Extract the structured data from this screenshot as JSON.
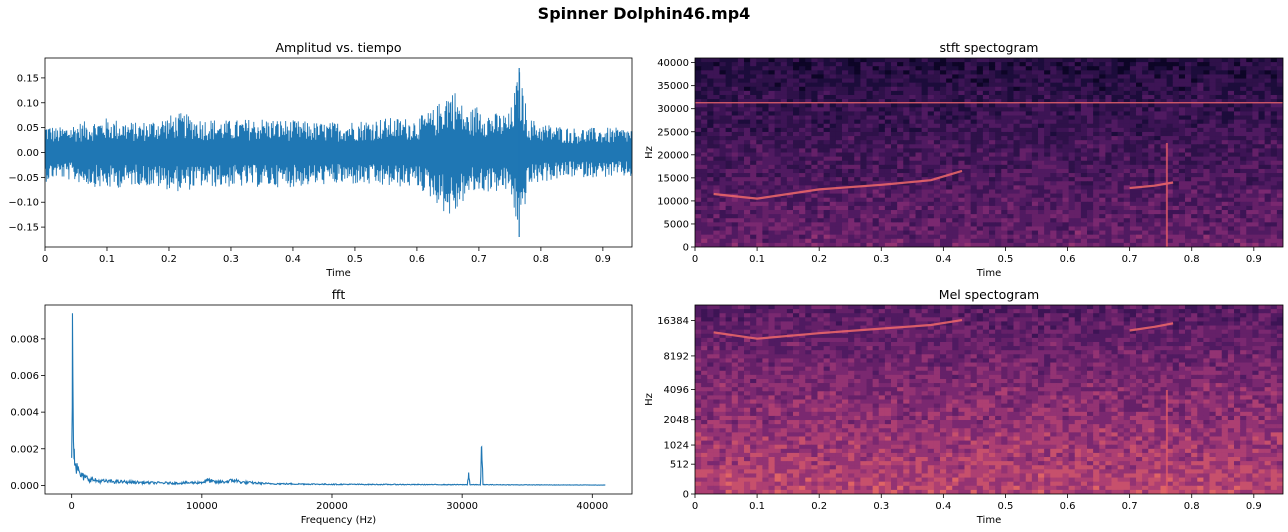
{
  "figure": {
    "suptitle": "Spinner Dolphin46.mp4"
  },
  "colors": {
    "line": "#1f77b4",
    "spec_low": "#1a0a3a",
    "spec_mid": "#6a2d7a",
    "spec_high": "#f0606a"
  },
  "chart_data": [
    {
      "type": "line",
      "title": "Amplitud vs. tiempo",
      "xlabel": "Time",
      "ylabel": "",
      "xlim": [
        0,
        0.947
      ],
      "ylim": [
        -0.19,
        0.19
      ],
      "xticks": [
        "0",
        "0.1",
        "0.2",
        "0.3",
        "0.4",
        "0.5",
        "0.6",
        "0.7",
        "0.8",
        "0.9"
      ],
      "xtick_values": [
        0,
        0.1,
        0.2,
        0.3,
        0.4,
        0.5,
        0.6,
        0.7,
        0.8,
        0.9
      ],
      "yticks": [
        "−0.15",
        "−0.10",
        "−0.05",
        "0.00",
        "0.05",
        "0.10",
        "0.15"
      ],
      "ytick_values": [
        -0.15,
        -0.1,
        -0.05,
        0,
        0.05,
        0.1,
        0.15
      ],
      "series": [
        {
          "values_description": "audio waveform envelope (time, max amplitude)",
          "x": [
            0,
            0.02,
            0.05,
            0.1,
            0.15,
            0.2,
            0.22,
            0.25,
            0.3,
            0.35,
            0.4,
            0.45,
            0.5,
            0.55,
            0.6,
            0.63,
            0.65,
            0.66,
            0.68,
            0.7,
            0.72,
            0.75,
            0.765,
            0.78,
            0.8,
            0.85,
            0.9,
            0.947
          ],
          "y_max": [
            0.06,
            0.05,
            0.06,
            0.07,
            0.06,
            0.075,
            0.08,
            0.07,
            0.065,
            0.07,
            0.065,
            0.06,
            0.065,
            0.07,
            0.07,
            0.09,
            0.13,
            0.13,
            0.08,
            0.1,
            0.08,
            0.08,
            0.17,
            0.07,
            0.06,
            0.05,
            0.05,
            0.05
          ],
          "y_min": [
            -0.06,
            -0.05,
            -0.06,
            -0.075,
            -0.065,
            -0.075,
            -0.08,
            -0.07,
            -0.07,
            -0.07,
            -0.07,
            -0.065,
            -0.065,
            -0.07,
            -0.07,
            -0.1,
            -0.13,
            -0.13,
            -0.09,
            -0.08,
            -0.08,
            -0.08,
            -0.17,
            -0.07,
            -0.06,
            -0.05,
            -0.05,
            -0.05
          ]
        }
      ]
    },
    {
      "type": "heatmap",
      "title": "stft spectogram",
      "xlabel": "Time",
      "ylabel": "Hz",
      "xlim": [
        0,
        0.947
      ],
      "ylim": [
        0,
        41000
      ],
      "xticks": [
        "0",
        "0.1",
        "0.2",
        "0.3",
        "0.4",
        "0.5",
        "0.6",
        "0.7",
        "0.8",
        "0.9"
      ],
      "xtick_values": [
        0,
        0.1,
        0.2,
        0.3,
        0.4,
        0.5,
        0.6,
        0.7,
        0.8,
        0.9
      ],
      "yticks": [
        "0",
        "5000",
        "10000",
        "15000",
        "20000",
        "25000",
        "30000",
        "35000",
        "40000"
      ],
      "ytick_values": [
        0,
        5000,
        10000,
        15000,
        20000,
        25000,
        30000,
        35000,
        40000
      ],
      "features": {
        "tone_hz": 31300,
        "whistle": {
          "t": [
            0.03,
            0.1,
            0.2,
            0.3,
            0.38,
            0.43
          ],
          "hz": [
            11500,
            10500,
            12500,
            13500,
            14500,
            16500
          ]
        },
        "whistle2": {
          "t": [
            0.7,
            0.74,
            0.77
          ],
          "hz": [
            12800,
            13300,
            14000
          ]
        },
        "click_t": [
          0.76
        ]
      }
    },
    {
      "type": "line",
      "title": "fft",
      "xlabel": "Frequency (Hz)",
      "ylabel": "",
      "xlim": [
        -2050,
        43050
      ],
      "ylim": [
        -0.00047,
        0.00985
      ],
      "xticks": [
        "0",
        "10000",
        "20000",
        "30000",
        "40000"
      ],
      "xtick_values": [
        0,
        10000,
        20000,
        30000,
        40000
      ],
      "yticks": [
        "0.000",
        "0.002",
        "0.004",
        "0.006",
        "0.008"
      ],
      "ytick_values": [
        0,
        0.002,
        0.004,
        0.006,
        0.008
      ],
      "series": [
        {
          "x": [
            0,
            60,
            120,
            200,
            300,
            500,
            800,
            1200,
            2000,
            4000,
            6000,
            8000,
            10000,
            10500,
            11000,
            12000,
            12500,
            13000,
            15000,
            20000,
            25000,
            30000,
            30400,
            30500,
            30600,
            31000,
            31400,
            31500,
            31600,
            35000,
            41000
          ],
          "y": [
            0.0015,
            0.0094,
            0.0035,
            0.002,
            0.0012,
            0.0008,
            0.0005,
            0.0004,
            0.00025,
            0.0002,
            0.00015,
            0.00013,
            0.00017,
            0.0003,
            0.00018,
            0.00022,
            0.0003,
            0.00018,
            0.0001,
            6e-05,
            5e-05,
            4e-05,
            4e-05,
            0.0007,
            4e-05,
            4e-05,
            4e-05,
            0.0021,
            4e-05,
            3e-05,
            2e-05
          ]
        }
      ]
    },
    {
      "type": "heatmap",
      "title": "Mel spectogram",
      "xlabel": "Time",
      "ylabel": "Hz",
      "xlim": [
        0,
        0.947
      ],
      "ylim": [
        0,
        22000
      ],
      "yscale": "mel",
      "xticks": [
        "0",
        "0.1",
        "0.2",
        "0.3",
        "0.4",
        "0.5",
        "0.6",
        "0.7",
        "0.8",
        "0.9"
      ],
      "xtick_values": [
        0,
        0.1,
        0.2,
        0.3,
        0.4,
        0.5,
        0.6,
        0.7,
        0.8,
        0.9
      ],
      "yticks": [
        "0",
        "512",
        "1024",
        "2048",
        "4096",
        "8192",
        "16384"
      ],
      "ytick_values": [
        0,
        512,
        1024,
        2048,
        4096,
        8192,
        16384
      ],
      "features": {
        "whistle": {
          "t": [
            0.03,
            0.1,
            0.2,
            0.3,
            0.38,
            0.43
          ],
          "hz": [
            13000,
            11500,
            12800,
            14000,
            15000,
            16500
          ]
        },
        "whistle2": {
          "t": [
            0.7,
            0.74,
            0.77
          ],
          "hz": [
            13500,
            14500,
            15500
          ]
        },
        "click_t": [
          0.76
        ]
      }
    }
  ]
}
